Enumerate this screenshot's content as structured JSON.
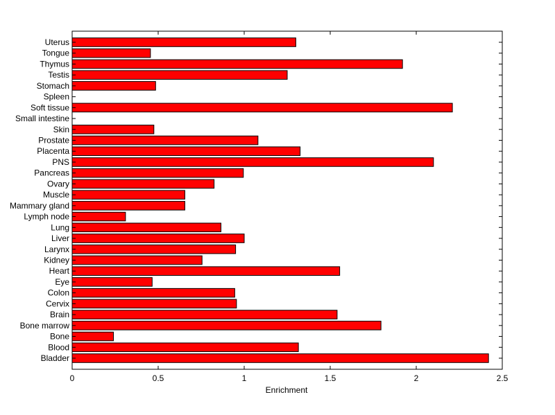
{
  "chart_data": {
    "type": "bar",
    "orientation": "horizontal",
    "title": "",
    "xlabel": "Enrichment",
    "ylabel": "",
    "xlim": [
      0,
      2.5
    ],
    "xticks": [
      "0",
      "0.5",
      "1",
      "1.5",
      "2",
      "2.5"
    ],
    "grid": false,
    "legend": "none",
    "bar_color": "#ff0000",
    "bar_edge_color": "#000000",
    "categories": [
      "Uterus",
      "Tongue",
      "Thymus",
      "Testis",
      "Stomach",
      "Spleen",
      "Soft tissue",
      "Small intestine",
      "Skin",
      "Prostate",
      "Placenta",
      "PNS",
      "Pancreas",
      "Ovary",
      "Muscle",
      "Mammary gland",
      "Lymph node",
      "Lung",
      "Liver",
      "Larynx",
      "Kidney",
      "Heart",
      "Eye",
      "Colon",
      "Cervix",
      "Brain",
      "Bone marrow",
      "Bone",
      "Blood",
      "Bladder"
    ],
    "values": [
      1.3,
      0.455,
      1.92,
      1.25,
      0.485,
      0,
      2.21,
      0,
      0.475,
      1.08,
      1.325,
      2.1,
      0.995,
      0.825,
      0.655,
      0.655,
      0.31,
      0.865,
      1.0,
      0.95,
      0.755,
      1.555,
      0.465,
      0.945,
      0.955,
      1.54,
      1.795,
      0.24,
      1.315,
      2.42
    ]
  }
}
